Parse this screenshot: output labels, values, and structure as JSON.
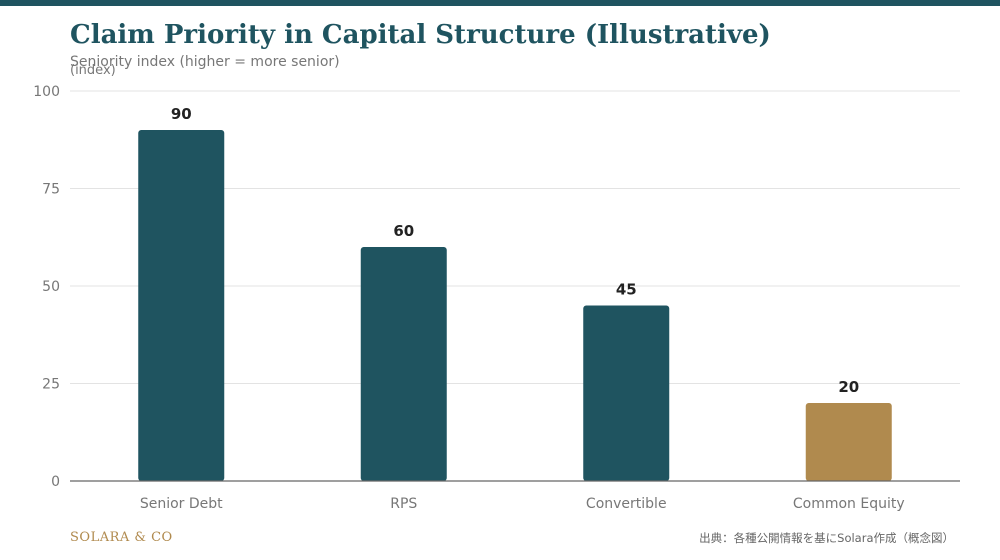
{
  "colors": {
    "primary": "#1f5460",
    "accent": "#b08a4e",
    "grid": "#e3e3e3",
    "axis_text": "#777777",
    "label_text": "#222222"
  },
  "chart_data": {
    "type": "bar",
    "title": "Claim Priority in Capital Structure (Illustrative)",
    "subtitle": "Seniority index (higher = more senior)",
    "xlabel": "",
    "ylabel": "(index)",
    "categories": [
      "Senior Debt",
      "RPS",
      "Convertible",
      "Common Equity"
    ],
    "values": [
      90,
      60,
      45,
      20
    ],
    "bar_colors": [
      "#1f5460",
      "#1f5460",
      "#1f5460",
      "#b08a4e"
    ],
    "data_labels": [
      "90",
      "60",
      "45",
      "20"
    ],
    "ylim": [
      0,
      100
    ],
    "yticks": [
      0,
      25,
      50,
      75,
      100
    ],
    "grid": true,
    "legend": "none"
  },
  "footer": {
    "brand": "SOLARA & CO",
    "source": "出典：各種公開情報を基にSolara作成（概念図）"
  }
}
